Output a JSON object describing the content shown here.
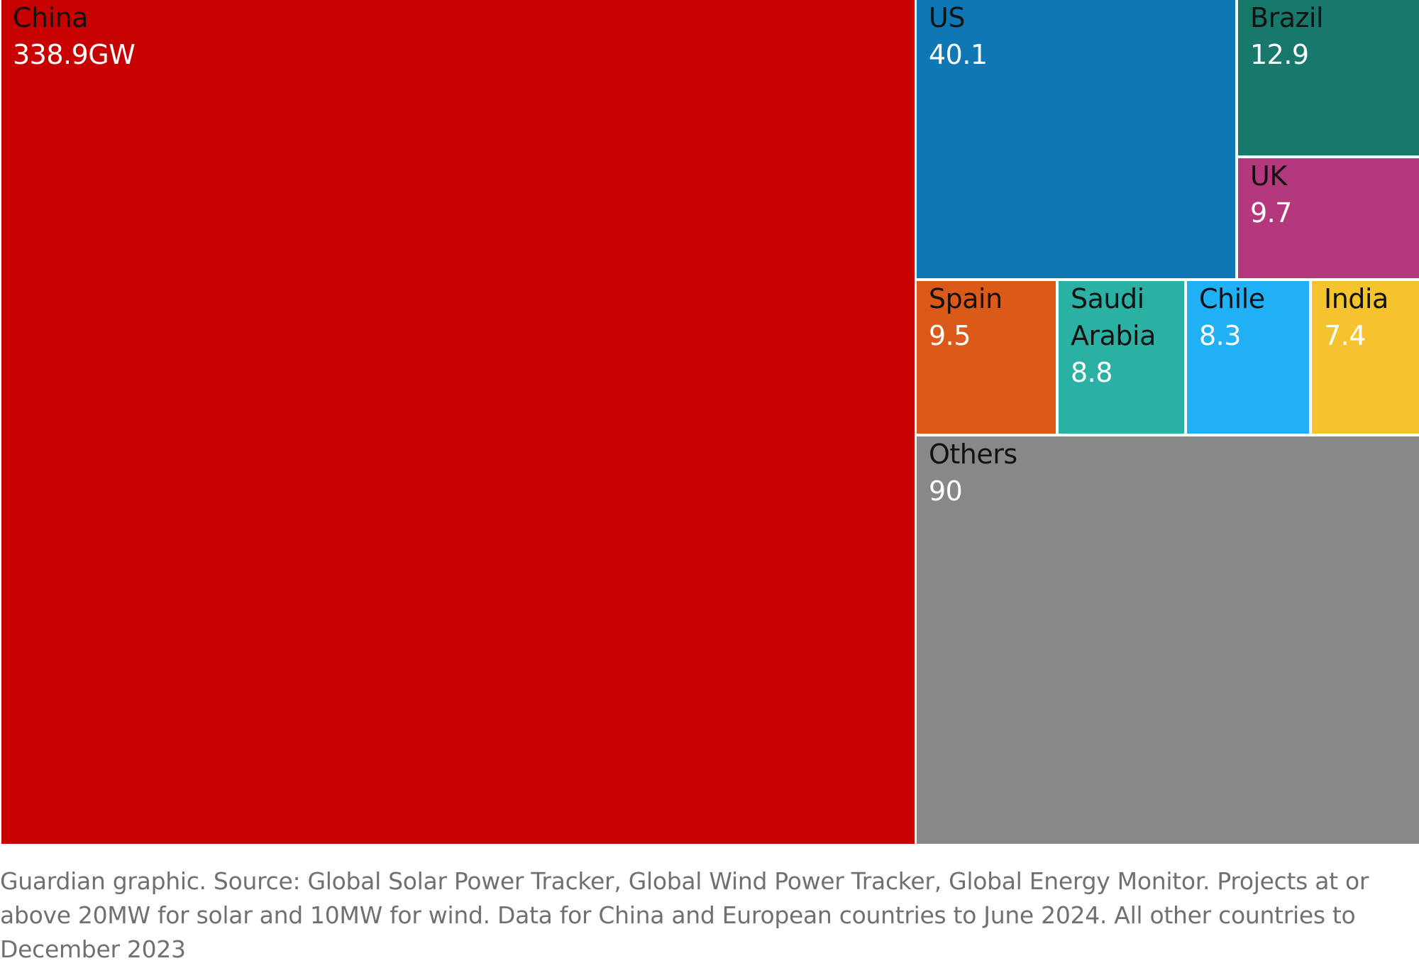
{
  "chart_data": {
    "type": "treemap",
    "unit": "GW",
    "cells": [
      {
        "label": "China",
        "value_text": "338.9GW",
        "value": 338.9,
        "color": "#c70000"
      },
      {
        "label": "US",
        "value_text": "40.1",
        "value": 40.1,
        "color": "#0f77b4"
      },
      {
        "label": "Brazil",
        "value_text": "12.9",
        "value": 12.9,
        "color": "#17786b"
      },
      {
        "label": "UK",
        "value_text": "9.7",
        "value": 9.7,
        "color": "#b3387e"
      },
      {
        "label": "Spain",
        "value_text": "9.5",
        "value": 9.5,
        "color": "#db5a1a"
      },
      {
        "label": "Saudi Arabia",
        "label_lines": [
          "Saudi",
          "Arabia"
        ],
        "value_text": "8.8",
        "value": 8.8,
        "color": "#2ab1a4"
      },
      {
        "label": "Chile",
        "value_text": "8.3",
        "value": 8.3,
        "color": "#1fb0f6"
      },
      {
        "label": "India",
        "value_text": "7.4",
        "value": 7.4,
        "color": "#f5c32d"
      },
      {
        "label": "Others",
        "value_text": "90",
        "value": 90,
        "color": "#888888"
      }
    ]
  },
  "source_note": "Guardian graphic. Source: Global Solar Power Tracker, Global Wind Power Tracker, Global Energy Monitor. Projects at or above 20MW for solar and 10MW for wind. Data for China and European countries to June 2024. All other countries to December 2023"
}
